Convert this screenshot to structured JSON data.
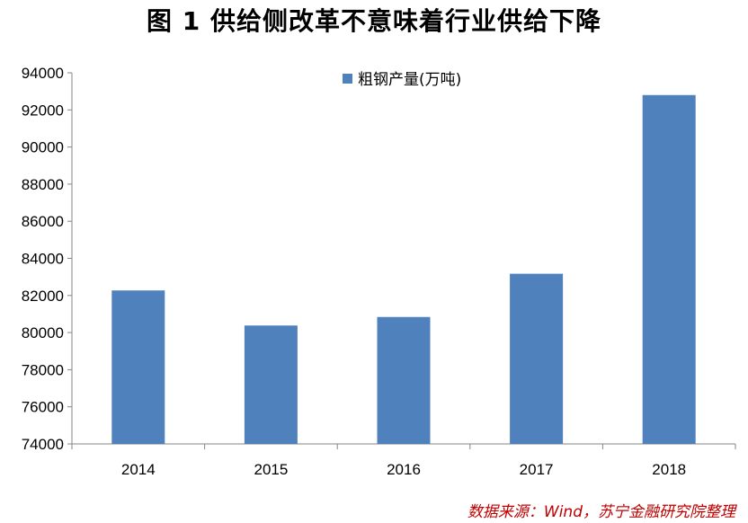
{
  "title": "图 1  供给侧改革不意味着行业供给下降",
  "source_note": "数据来源：Wind，苏宁金融研究院整理",
  "chart_data": {
    "type": "bar",
    "categories": [
      "2014",
      "2015",
      "2016",
      "2017",
      "2018"
    ],
    "series": [
      {
        "name": "粗钢产量(万吨)",
        "values": [
          82270,
          80380,
          80840,
          83170,
          92800
        ],
        "color": "#4f81bd"
      }
    ],
    "ylim": [
      74000,
      94000
    ],
    "yticks": [
      "74000",
      "76000",
      "78000",
      "80000",
      "82000",
      "84000",
      "86000",
      "88000",
      "90000",
      "92000",
      "94000"
    ],
    "grid": false,
    "legend_position": "top-center"
  }
}
